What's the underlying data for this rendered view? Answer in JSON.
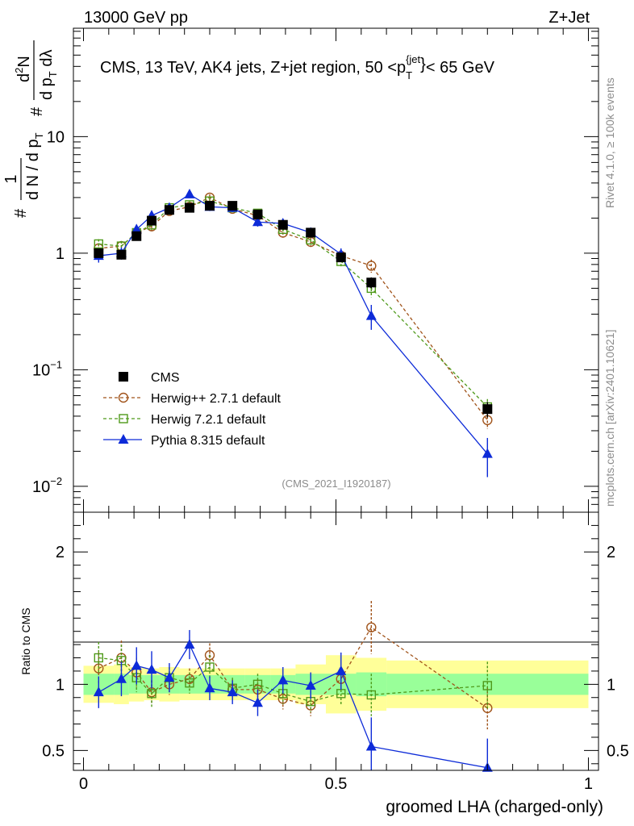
{
  "header": {
    "left": "13000 GeV pp",
    "right": "Z+Jet"
  },
  "side_labels": {
    "rivet": "Rivet 4.1.0, ≥ 100k events",
    "mcplots": "mcplots.cern.ch [arXiv:2401.10621]"
  },
  "chart_data": {
    "type": "line",
    "title": "CMS, 13 TeV, AK4 jets, Z+jet region, 50 <p_T^{jet}< 65 GeV",
    "title_parts": {
      "main": "CMS, 13 TeV, AK4 jets, Z+jet region, 50 <p",
      "sub": "T",
      "sup": "{jet",
      "sup_close": "}",
      "tail": "< 65 GeV"
    },
    "analysis_id": "(CMS_2021_I1920187)",
    "xlabel": "groomed LHA (charged-only)",
    "ylabel": "1/N dN/dp_T dlambda",
    "ylabel_parts": {
      "hash": "#",
      "one": "1",
      "den": "d N / d p",
      "den_sub": "T",
      "num2_hash": "#",
      "num2": "d",
      "sup2": "2",
      "num2_tail": "N",
      "den2": "d p",
      "den2_sub": "T",
      "den2_tail": " dλ"
    },
    "xlim": [
      -0.02,
      1.02
    ],
    "ylim": [
      0.006,
      85
    ],
    "ratio_ylabel": "Ratio to CMS",
    "ratio_ylim": [
      0.35,
      2.3
    ],
    "x_ticks": [
      "0",
      "0.5",
      "1"
    ],
    "x_tick_values": [
      0,
      0.5,
      1
    ],
    "y_ticks": [
      "10",
      "1"
    ],
    "y_tick_values": [
      10,
      1
    ],
    "y_ticks_exp": [
      {
        "base": "10",
        "exp": "−1",
        "value": 0.1
      },
      {
        "base": "10",
        "exp": "−2",
        "value": 0.01
      }
    ],
    "ratio_ticks": [
      "2",
      "1",
      "0.5"
    ],
    "ratio_tick_values": [
      2,
      1,
      0.5
    ],
    "bin_edges": [
      0,
      0.06,
      0.09,
      0.12,
      0.15,
      0.19,
      0.23,
      0.27,
      0.32,
      0.37,
      0.42,
      0.48,
      0.54,
      0.6,
      1.0
    ],
    "x": [
      0.03,
      0.075,
      0.105,
      0.135,
      0.17,
      0.21,
      0.25,
      0.295,
      0.345,
      0.395,
      0.45,
      0.51,
      0.57,
      0.8
    ],
    "series": [
      {
        "name": "CMS",
        "color": "#000000",
        "marker": "square",
        "values": [
          1.0,
          0.97,
          1.4,
          1.9,
          2.35,
          2.45,
          2.55,
          2.55,
          2.15,
          1.75,
          1.5,
          0.92,
          0.56,
          0.046
        ],
        "errors": [
          0.08,
          0.08,
          0.1,
          0.12,
          0.15,
          0.15,
          0.15,
          0.15,
          0.13,
          0.11,
          0.1,
          0.08,
          0.06,
          0.007
        ]
      },
      {
        "name": "Herwig++ 2.7.1 default",
        "color": "#a0531a",
        "marker": "circle",
        "dash": true,
        "values": [
          1.1,
          1.15,
          1.5,
          1.7,
          2.3,
          2.5,
          3.0,
          2.4,
          2.1,
          1.5,
          1.25,
          0.95,
          0.78,
          0.037
        ],
        "errors": [
          0.1,
          0.12,
          0.14,
          0.16,
          0.18,
          0.18,
          0.2,
          0.18,
          0.16,
          0.14,
          0.12,
          0.1,
          0.1,
          0.006
        ],
        "ratio": [
          1.12,
          1.2,
          1.09,
          0.94,
          1.0,
          1.04,
          1.22,
          0.96,
          0.96,
          0.89,
          0.84,
          1.04,
          1.43,
          0.82
        ],
        "ratio_err": [
          0.12,
          0.13,
          0.11,
          0.09,
          0.08,
          0.08,
          0.09,
          0.08,
          0.08,
          0.08,
          0.08,
          0.09,
          0.2,
          0.16
        ]
      },
      {
        "name": "Herwig 7.2.1 default",
        "color": "#4f9a1b",
        "marker": "open-square",
        "dash": true,
        "values": [
          1.2,
          1.15,
          1.5,
          1.75,
          2.45,
          2.6,
          2.8,
          2.45,
          2.2,
          1.6,
          1.3,
          0.85,
          0.5,
          0.048
        ],
        "errors": [
          0.12,
          0.12,
          0.14,
          0.16,
          0.18,
          0.18,
          0.2,
          0.18,
          0.16,
          0.14,
          0.12,
          0.1,
          0.08,
          0.008
        ],
        "ratio": [
          1.2,
          1.18,
          1.05,
          0.93,
          1.05,
          1.01,
          1.13,
          0.97,
          1.0,
          0.93,
          0.87,
          0.93,
          0.92,
          0.99
        ],
        "ratio_err": [
          0.12,
          0.12,
          0.11,
          0.1,
          0.08,
          0.08,
          0.09,
          0.08,
          0.08,
          0.08,
          0.08,
          0.09,
          0.16,
          0.18
        ]
      },
      {
        "name": "Pythia 8.315 default",
        "color": "#0d2bd8",
        "marker": "triangle",
        "dash": false,
        "values": [
          0.95,
          1.0,
          1.6,
          2.1,
          2.45,
          3.2,
          2.5,
          2.45,
          1.85,
          1.8,
          1.5,
          0.98,
          0.29,
          0.019
        ],
        "errors": [
          0.12,
          0.12,
          0.16,
          0.2,
          0.2,
          0.22,
          0.2,
          0.2,
          0.16,
          0.16,
          0.14,
          0.12,
          0.07,
          0.007
        ],
        "ratio": [
          0.94,
          1.04,
          1.14,
          1.11,
          1.05,
          1.3,
          0.97,
          0.94,
          0.86,
          1.03,
          0.99,
          1.1,
          0.53,
          0.37
        ],
        "ratio_err": [
          0.12,
          0.13,
          0.14,
          0.14,
          0.11,
          0.11,
          0.09,
          0.09,
          0.1,
          0.1,
          0.1,
          0.14,
          0.22,
          0.22
        ]
      }
    ],
    "band_inner": [
      0.08,
      0.08,
      0.07,
      0.07,
      0.07,
      0.07,
      0.07,
      0.07,
      0.07,
      0.07,
      0.08,
      0.08,
      0.09,
      0.08
    ],
    "band_outer": [
      0.14,
      0.15,
      0.13,
      0.12,
      0.13,
      0.12,
      0.12,
      0.12,
      0.12,
      0.12,
      0.15,
      0.22,
      0.2,
      0.18
    ],
    "legend_placement": "bottom-left"
  }
}
